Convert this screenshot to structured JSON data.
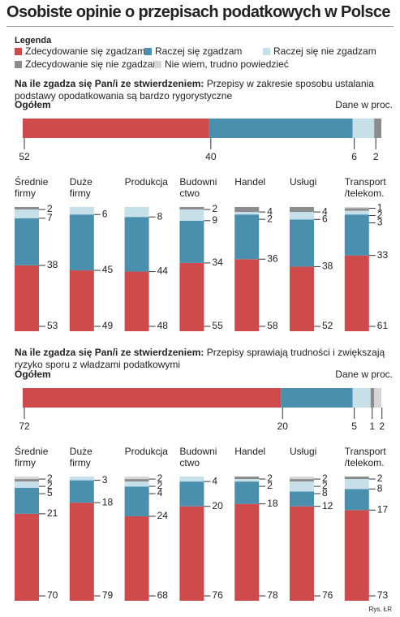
{
  "title": "Osobiste opinie o przepisach podatkowych w Polsce",
  "legend": {
    "title": "Legenda",
    "series": [
      {
        "name": "Zdecydowanie się zgadzam",
        "color": "#cf4b4b"
      },
      {
        "name": "Raczej się zgadzam",
        "color": "#4a8fae"
      },
      {
        "name": "Raczej się nie zgadzam",
        "color": "#c6e0ea"
      },
      {
        "name": "Zdecydowanie się nie zgadzam",
        "color": "#8c8c8c"
      },
      {
        "name": "Nie wiem, trudno powiedzieć",
        "color": "#d6d6d6"
      }
    ]
  },
  "panels": [
    {
      "question_lead": "Na ile zgadza się Pan/i ze stwierdzeniem:",
      "question_text": "Przepisy w zakresie sposobu ustalania podstawy opodatkowania są bardzo rygorystyczne",
      "total_label": "Ogółem",
      "unit_note": "Dane w proc.",
      "total": [
        52,
        40,
        6,
        2,
        null
      ],
      "groups": [
        {
          "label_lines": [
            "Średnie",
            "firmy"
          ],
          "values": [
            53,
            38,
            7,
            2,
            null
          ]
        },
        {
          "label_lines": [
            "Duże",
            "firmy"
          ],
          "values": [
            49,
            45,
            6,
            null,
            null
          ]
        },
        {
          "label_lines": [
            "Produkcja"
          ],
          "values": [
            48,
            44,
            8,
            null,
            null
          ]
        },
        {
          "label_lines": [
            "Budowni",
            "ctwo"
          ],
          "values": [
            55,
            34,
            9,
            2,
            null
          ]
        },
        {
          "label_lines": [
            "Handel"
          ],
          "values": [
            58,
            36,
            2,
            4,
            null
          ]
        },
        {
          "label_lines": [
            "Usługi"
          ],
          "values": [
            52,
            38,
            6,
            4,
            null
          ]
        },
        {
          "label_lines": [
            "Transport",
            "/telekom."
          ],
          "values": [
            61,
            33,
            3,
            2,
            1
          ]
        }
      ]
    },
    {
      "question_lead": "Na ile zgadza się Pan/i ze stwierdzeniem:",
      "question_text": "Przepisy sprawiają trudności i zwiększają ryzyko sporu z władzami podatkowymi",
      "total_label": "Ogółem",
      "unit_note": "Dane w proc.",
      "total": [
        72,
        20,
        5,
        1,
        2
      ],
      "groups": [
        {
          "label_lines": [
            "Średnie",
            "firmy"
          ],
          "values": [
            70,
            21,
            5,
            2,
            2
          ]
        },
        {
          "label_lines": [
            "Duże",
            "firmy"
          ],
          "values": [
            79,
            18,
            3,
            null,
            null
          ]
        },
        {
          "label_lines": [
            "Produkcja"
          ],
          "values": [
            68,
            24,
            4,
            2,
            2
          ]
        },
        {
          "label_lines": [
            "Budowni",
            "ctwo"
          ],
          "values": [
            76,
            20,
            4,
            null,
            null
          ]
        },
        {
          "label_lines": [
            "Handel"
          ],
          "values": [
            78,
            18,
            2,
            2,
            null
          ]
        },
        {
          "label_lines": [
            "Usługi"
          ],
          "values": [
            76,
            12,
            8,
            2,
            2
          ]
        },
        {
          "label_lines": [
            "Transport",
            "/telekom."
          ],
          "values": [
            73,
            17,
            8,
            2,
            null
          ]
        }
      ]
    }
  ],
  "source": "Rys. ŁR"
}
